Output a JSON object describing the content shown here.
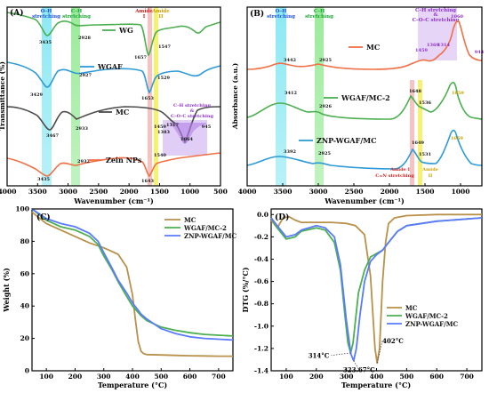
{
  "chart_data": [
    {
      "panel_label": "(A)",
      "type": "line",
      "xlabel": "Wavenumber (cm⁻¹)",
      "ylabel": "Transmittance (%)",
      "xlim": [
        4000,
        500
      ],
      "x_ticks": [
        "4000",
        "3500",
        "3000",
        "2500",
        "2000",
        "1500",
        "1000",
        "500"
      ],
      "bands": [
        {
          "label": "O-H stretching",
          "x": [
            3520,
            3380
          ],
          "color": "#7fe6f2"
        },
        {
          "label": "C-H stretching",
          "x": [
            3000,
            2900
          ],
          "color": "#8fe88f"
        },
        {
          "label": "Amide I",
          "x": [
            1680,
            1620
          ],
          "color": "#f5b3b3"
        },
        {
          "label": "Amide II",
          "x": [
            1565,
            1520
          ],
          "color": "#f5f060"
        }
      ],
      "band_label_colors": {
        "oh": "#1e4fd8",
        "ch": "#13a32f",
        "amide1": "#d42020",
        "amide2": "#c8a100"
      },
      "series": [
        {
          "name": "WG",
          "color": "#4caf50"
        },
        {
          "name": "WGAF",
          "color": "#2e9bd6"
        },
        {
          "name": "MC",
          "color": "#4d4d4d"
        },
        {
          "name": "Zein NPs",
          "color": "#f07047"
        }
      ],
      "annotations": [
        "3435",
        "2928",
        "1657",
        "1547",
        "3429",
        "2927",
        "1653",
        "1529",
        "3467",
        "2933",
        "1459",
        "1383",
        "1317",
        "1064",
        "945",
        "C-H stretching",
        "&",
        "C-O-C stretching",
        "3435",
        "2932",
        "1643",
        "1540"
      ]
    },
    {
      "panel_label": "(B)",
      "type": "line",
      "xlabel": "Wavenumber (cm⁻¹)",
      "ylabel": "Absorbance (a.u.)",
      "xlim": [
        4000,
        700
      ],
      "x_ticks": [
        "4000",
        "3500",
        "3000",
        "2500",
        "2000",
        "1500",
        "1000"
      ],
      "bands": [
        {
          "label": "O-H stretching",
          "x": [
            3520,
            3380
          ]
        },
        {
          "label": "C-H stretching",
          "x": [
            3000,
            2890
          ]
        },
        {
          "label": "C-H stretching & C-O-C stretching",
          "x": [
            1480,
            1290
          ]
        },
        {
          "label": "Amide I C=N stretching",
          "x": [
            1670,
            1620
          ]
        },
        {
          "label": "Amide II",
          "x": [
            1560,
            1510
          ]
        }
      ],
      "series": [
        {
          "name": "MC",
          "color": "#f07047"
        },
        {
          "name": "WGAF/MC-2",
          "color": "#4caf50"
        },
        {
          "name": "ZNP-WGAF/MC",
          "color": "#2e9bd6"
        }
      ],
      "annotations": [
        "3442",
        "2925",
        "1459",
        "1369",
        "1314",
        "1060",
        "944",
        "3412",
        "2926",
        "1648",
        "1536",
        "1059",
        "3392",
        "2925",
        "1649",
        "1531",
        "1059"
      ]
    },
    {
      "panel_label": "(C)",
      "type": "line",
      "xlabel": "Temperature (°C)",
      "ylabel": "Weight (%)",
      "xlim": [
        50,
        750
      ],
      "ylim": [
        0,
        100
      ],
      "x_ticks": [
        100,
        200,
        300,
        400,
        500,
        600,
        700
      ],
      "y_ticks": [
        0,
        20,
        40,
        60,
        80,
        100
      ],
      "series": [
        {
          "name": "MC",
          "color": "#b8914a",
          "x": [
            50,
            100,
            150,
            200,
            250,
            300,
            350,
            380,
            400,
            410,
            420,
            430,
            440,
            450,
            500,
            550,
            600,
            650,
            700,
            750
          ],
          "y": [
            98,
            91,
            87,
            83,
            79,
            76,
            72,
            64,
            47,
            32,
            18,
            12,
            10.5,
            10,
            9.8,
            9.5,
            9.3,
            9.2,
            9,
            9
          ]
        },
        {
          "name": "WGAF/MC-2",
          "color": "#4caf50",
          "x": [
            50,
            100,
            150,
            200,
            250,
            280,
            300,
            330,
            350,
            380,
            400,
            430,
            450,
            500,
            550,
            600,
            650,
            700,
            750
          ],
          "y": [
            100,
            93,
            89,
            87,
            83,
            78,
            71,
            62,
            55,
            46,
            40,
            34,
            31,
            27,
            25,
            23.5,
            22.5,
            22,
            21.5
          ]
        },
        {
          "name": "ZNP-WGAF/MC",
          "color": "#5a7bff",
          "x": [
            50,
            100,
            150,
            200,
            250,
            280,
            300,
            330,
            350,
            380,
            400,
            430,
            450,
            500,
            550,
            600,
            650,
            700,
            750
          ],
          "y": [
            100,
            94,
            91,
            89,
            85,
            80,
            73,
            63,
            56,
            48,
            42,
            35,
            32,
            26,
            23,
            21,
            20,
            19.5,
            19
          ]
        }
      ]
    },
    {
      "panel_label": "(D)",
      "type": "line",
      "xlabel": "Temperature (°C)",
      "ylabel": "DTG (%/°C)",
      "xlim": [
        50,
        750
      ],
      "ylim": [
        -1.4,
        0.05
      ],
      "x_ticks": [
        100,
        200,
        300,
        400,
        500,
        600,
        700
      ],
      "y_ticks": [
        "0.0",
        "-0.2",
        "-0.4",
        "-0.6",
        "-0.8",
        "-1.0",
        "-1.2",
        "-1.4"
      ],
      "y_tick_values": [
        0,
        -0.2,
        -0.4,
        -0.6,
        -0.8,
        -1.0,
        -1.2,
        -1.4
      ],
      "series": [
        {
          "name": "MC",
          "color": "#b8914a",
          "x": [
            50,
            70,
            90,
            110,
            130,
            150,
            200,
            250,
            300,
            330,
            360,
            380,
            395,
            402,
            410,
            420,
            430,
            440,
            460,
            500,
            600,
            750
          ],
          "y": [
            -0.05,
            -0.12,
            -0.03,
            -0.02,
            -0.05,
            -0.07,
            -0.07,
            -0.07,
            -0.08,
            -0.1,
            -0.18,
            -0.55,
            -1.2,
            -1.33,
            -1.2,
            -0.6,
            -0.25,
            -0.08,
            -0.03,
            -0.01,
            0,
            0
          ]
        },
        {
          "name": "WGAF/MC-2",
          "color": "#4caf50",
          "x": [
            50,
            70,
            100,
            130,
            150,
            200,
            230,
            260,
            280,
            295,
            305,
            314,
            322,
            330,
            340,
            360,
            380,
            400,
            420,
            440,
            470,
            500,
            600,
            750
          ],
          "y": [
            -0.03,
            -0.12,
            -0.22,
            -0.2,
            -0.15,
            -0.12,
            -0.14,
            -0.25,
            -0.5,
            -0.9,
            -1.15,
            -1.24,
            -1.15,
            -0.95,
            -0.7,
            -0.5,
            -0.38,
            -0.35,
            -0.32,
            -0.25,
            -0.15,
            -0.1,
            -0.06,
            -0.03
          ]
        },
        {
          "name": "ZNP-WGAF/MC",
          "color": "#5a7bff",
          "x": [
            50,
            70,
            100,
            130,
            150,
            200,
            230,
            260,
            280,
            300,
            315,
            324,
            333,
            345,
            360,
            380,
            400,
            420,
            440,
            470,
            500,
            600,
            750
          ],
          "y": [
            -0.03,
            -0.1,
            -0.2,
            -0.18,
            -0.14,
            -0.1,
            -0.12,
            -0.2,
            -0.45,
            -0.95,
            -1.25,
            -1.31,
            -1.2,
            -0.9,
            -0.6,
            -0.42,
            -0.36,
            -0.32,
            -0.25,
            -0.15,
            -0.1,
            -0.06,
            -0.03
          ]
        }
      ],
      "annotations": [
        "314°C",
        "323.67°C",
        "402°C"
      ]
    }
  ]
}
